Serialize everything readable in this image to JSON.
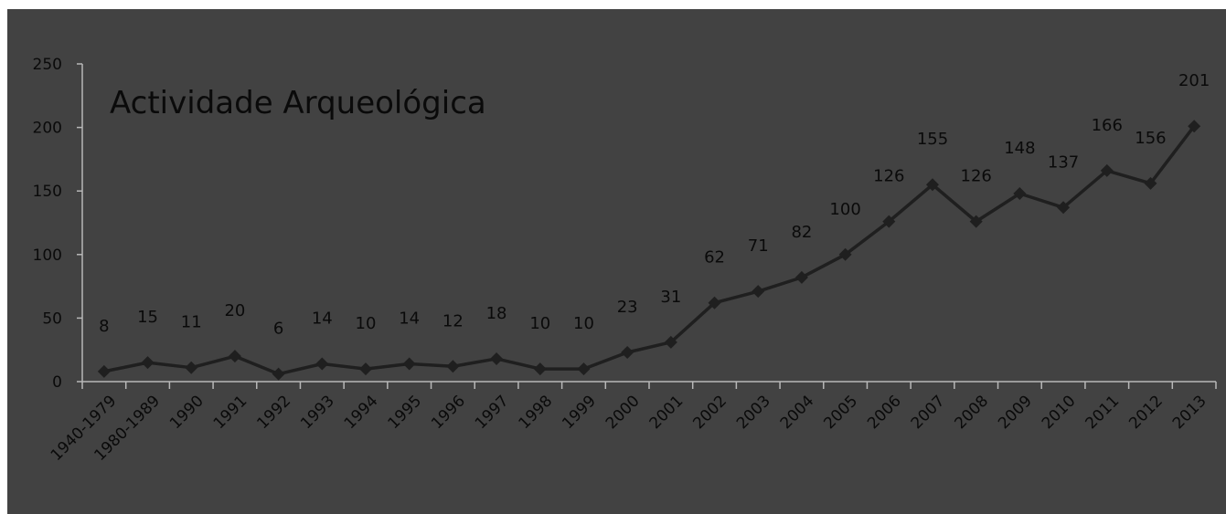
{
  "chart_data": {
    "type": "line",
    "title": "Actividade Arqueológica",
    "categories": [
      "1940-1979",
      "1980-1989",
      "1990",
      "1991",
      "1992",
      "1993",
      "1994",
      "1995",
      "1996",
      "1997",
      "1998",
      "1999",
      "2000",
      "2001",
      "2002",
      "2003",
      "2004",
      "2005",
      "2006",
      "2007",
      "2008",
      "2009",
      "2010",
      "2011",
      "2012",
      "2013"
    ],
    "series": [
      {
        "values": [
          8,
          15,
          11,
          20,
          6,
          14,
          10,
          14,
          12,
          18,
          10,
          10,
          23,
          31,
          62,
          71,
          82,
          100,
          126,
          155,
          126,
          148,
          137,
          166,
          156,
          201
        ]
      }
    ],
    "ylim": [
      0,
      250
    ],
    "yticks": [
      0,
      50,
      100,
      150,
      200,
      250
    ],
    "xlabel": "",
    "ylabel": "",
    "grid": false,
    "colors": {
      "plot_background": "#424242",
      "line": "#1f1f1f",
      "axis": "#b8b8b8",
      "text": "#0a0a0a"
    }
  }
}
